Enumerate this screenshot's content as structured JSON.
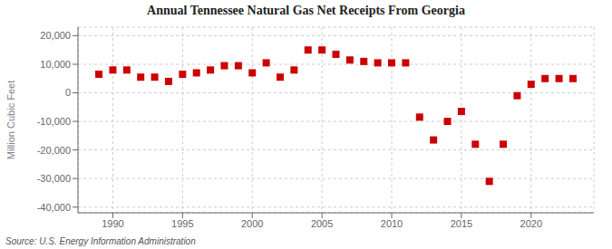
{
  "chart_data": {
    "type": "scatter",
    "title": "Annual Tennessee Natural Gas Net Receipts From Georgia",
    "ylabel": "Million Cubic Feet",
    "annotations": [
      "Source: U.S. Energy Information Administration"
    ],
    "x": [
      1989,
      1990,
      1991,
      1992,
      1993,
      1994,
      1995,
      1996,
      1997,
      1998,
      1999,
      2000,
      2001,
      2002,
      2003,
      2004,
      2005,
      2006,
      2007,
      2008,
      2009,
      2010,
      2011,
      2012,
      2013,
      2014,
      2015,
      2016,
      2017,
      2018,
      2019,
      2020,
      2021,
      2022,
      2023
    ],
    "values": [
      6500,
      8000,
      8000,
      5500,
      5500,
      4000,
      6500,
      7000,
      8000,
      9500,
      9500,
      7000,
      10500,
      5500,
      8000,
      15000,
      15000,
      13500,
      11500,
      11000,
      10500,
      10500,
      10500,
      -8500,
      -16500,
      -10000,
      -6500,
      -18000,
      -31000,
      -18000,
      -1000,
      3000,
      5000,
      5000,
      5000
    ],
    "color": "#cc0000",
    "marker": "square",
    "xlim": [
      1987.5,
      2024.5
    ],
    "xticks": [
      1990,
      1995,
      2000,
      2005,
      2010,
      2015,
      2020
    ],
    "ylim": [
      -42000,
      23000
    ],
    "yticks": [
      {
        "value": -40000,
        "label": "-40,000"
      },
      {
        "value": -30000,
        "label": "-30,000"
      },
      {
        "value": -20000,
        "label": "-20,000"
      },
      {
        "value": -10000,
        "label": "-10,000"
      },
      0,
      {
        "value": 10000,
        "label": "10,000"
      },
      {
        "value": 20000,
        "label": "20,000"
      }
    ],
    "grid": true
  }
}
